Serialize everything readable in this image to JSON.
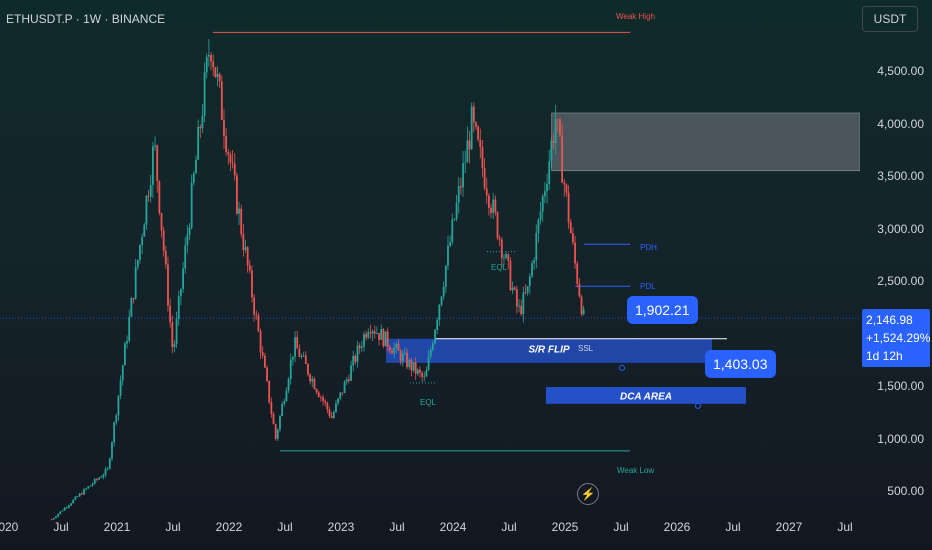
{
  "header": {
    "symbol": "ETHUSDT.P · 1W · BINANCE"
  },
  "axis": {
    "currency": "USDT",
    "y_ticks": [
      "4,500.00",
      "4,000.00",
      "3,500.00",
      "3,000.00",
      "2,500.00",
      "1,500.00",
      "1,000.00",
      "500.00"
    ],
    "x_ticks": [
      "2020",
      "Jul",
      "2021",
      "Jul",
      "2022",
      "Jul",
      "2023",
      "Jul",
      "2024",
      "Jul",
      "2025",
      "Jul",
      "2026",
      "Jul",
      "2027",
      "Jul"
    ]
  },
  "price_tag": {
    "price": "2,146.98",
    "change": "+1,524.29%",
    "countdown": "1d 12h",
    "color": "#2962ff"
  },
  "callouts": [
    {
      "label": "1,902.21"
    },
    {
      "label": "1,403.03"
    }
  ],
  "annotations": {
    "weak_high": "Weak High",
    "weak_low": "Weak Low",
    "pdh": "PDH",
    "pdl": "PDL",
    "eql_top": "EQL",
    "eql_bottom": "EQL",
    "ssl": "SSL",
    "sr_flip": "S/R FLIP",
    "dca_area": "DCA AREA"
  },
  "chart_data": {
    "type": "candlestick",
    "title": "",
    "xlabel": "",
    "ylabel": "",
    "ylim": [
      380,
      4900
    ],
    "x_range": [
      "2020-01",
      "2027-12"
    ],
    "current_price": 2146.98,
    "colors": {
      "up": "#26a69a",
      "down": "#ef5350",
      "zone": "#2962ff",
      "supply": "#787b86",
      "current_line": "#2962ff"
    },
    "price_path": [
      [
        "2020-06",
        230
      ],
      [
        "2020-12",
        700
      ],
      [
        "2021-05",
        3800
      ],
      [
        "2021-07",
        1800
      ],
      [
        "2021-11",
        4800
      ],
      [
        "2022-06",
        1000
      ],
      [
        "2022-08",
        1900
      ],
      [
        "2022-12",
        1200
      ],
      [
        "2023-04",
        2100
      ],
      [
        "2023-10",
        1550
      ],
      [
        "2024-03",
        4000
      ],
      [
        "2024-08",
        2200
      ],
      [
        "2024-09",
        2400
      ],
      [
        "2024-12",
        4050
      ],
      [
        "2025-02",
        2700
      ],
      [
        "2025-03",
        2146.98
      ]
    ],
    "levels": {
      "weak_high": 4868,
      "weak_low": 882,
      "pdh": 2850,
      "pdl": 2450,
      "ssl": 1950
    },
    "zones": {
      "supply": [
        3550,
        4100
      ],
      "sr_flip": [
        1720,
        1950
      ],
      "dca_area": [
        1330,
        1490
      ]
    }
  }
}
